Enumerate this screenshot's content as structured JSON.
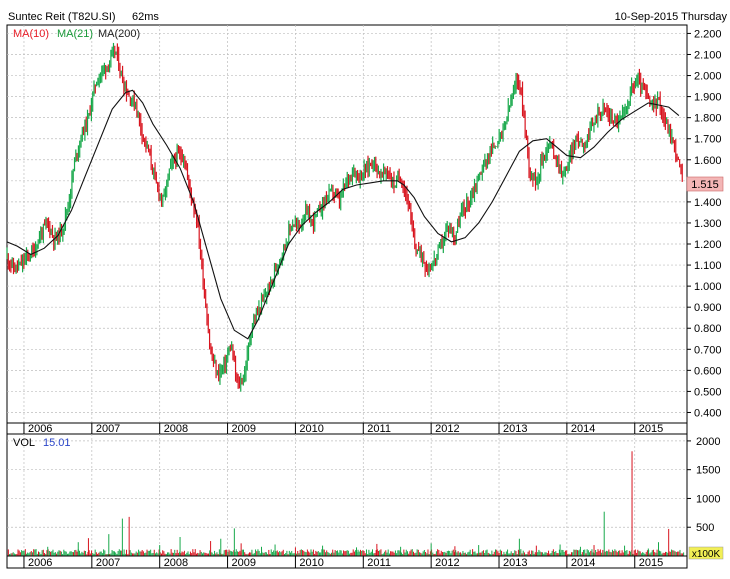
{
  "header": {
    "title": "Suntec Reit (T82U.SI)",
    "timing": "62ms",
    "date": "10-Sep-2015 Thursday"
  },
  "legend": [
    {
      "label": "MA(10)",
      "color": "#e8202a"
    },
    {
      "label": "MA(21)",
      "color": "#1a9a3a"
    },
    {
      "label": "MA(200)",
      "color": "#222222"
    }
  ],
  "colors": {
    "up": "#17a84a",
    "down": "#d8141e",
    "ma200": "#111111",
    "grid": "#bdbdbd",
    "last_price_bg": "#f3b6b6",
    "vol_value": "#2b46c8"
  },
  "chart_data": [
    {
      "type": "line",
      "title": "",
      "x_tick_labels": [
        "2006",
        "2007",
        "2008",
        "2009",
        "2010",
        "2011",
        "2012",
        "2013",
        "2014",
        "2015"
      ],
      "y_tick_labels": [
        "0.400",
        "0.500",
        "0.600",
        "0.700",
        "0.800",
        "0.900",
        "1.000",
        "1.100",
        "1.200",
        "1.300",
        "1.400",
        "1.500",
        "1.600",
        "1.700",
        "1.800",
        "1.900",
        "2.000",
        "2.100",
        "2.200"
      ],
      "ylim": [
        0.35,
        2.24
      ],
      "xlim": [
        2005.75,
        2015.77
      ],
      "grid": true,
      "last_price": "1.515",
      "series": [
        {
          "name": "MA(200)",
          "x": [
            2005.75,
            2005.9,
            2006.1,
            2006.3,
            2006.5,
            2006.7,
            2006.9,
            2007.1,
            2007.3,
            2007.5,
            2007.6,
            2007.75,
            2007.9,
            2008.1,
            2008.3,
            2008.5,
            2008.7,
            2008.9,
            2009.1,
            2009.3,
            2009.45,
            2009.6,
            2009.75,
            2009.9,
            2010.1,
            2010.3,
            2010.5,
            2010.7,
            2010.9,
            2011.1,
            2011.3,
            2011.5,
            2011.6,
            2011.75,
            2011.9,
            2012.1,
            2012.3,
            2012.5,
            2012.7,
            2012.9,
            2013.1,
            2013.3,
            2013.5,
            2013.7,
            2013.85,
            2014.0,
            2014.2,
            2014.4,
            2014.6,
            2014.8,
            2015.0,
            2015.2,
            2015.35,
            2015.5,
            2015.65
          ],
          "values": [
            1.21,
            1.19,
            1.15,
            1.18,
            1.24,
            1.36,
            1.52,
            1.68,
            1.84,
            1.92,
            1.93,
            1.87,
            1.77,
            1.67,
            1.56,
            1.4,
            1.17,
            0.94,
            0.79,
            0.75,
            0.84,
            0.96,
            1.08,
            1.2,
            1.29,
            1.35,
            1.4,
            1.46,
            1.48,
            1.49,
            1.5,
            1.5,
            1.48,
            1.42,
            1.33,
            1.25,
            1.21,
            1.23,
            1.3,
            1.4,
            1.52,
            1.64,
            1.69,
            1.7,
            1.66,
            1.62,
            1.61,
            1.66,
            1.73,
            1.79,
            1.83,
            1.87,
            1.86,
            1.85,
            1.81
          ]
        },
        {
          "name": "Price",
          "x": [
            2005.75,
            2005.85,
            2005.95,
            2006.05,
            2006.15,
            2006.25,
            2006.35,
            2006.45,
            2006.55,
            2006.65,
            2006.75,
            2006.85,
            2006.95,
            2007.05,
            2007.15,
            2007.25,
            2007.35,
            2007.45,
            2007.55,
            2007.65,
            2007.75,
            2007.85,
            2007.95,
            2008.05,
            2008.15,
            2008.25,
            2008.35,
            2008.45,
            2008.55,
            2008.65,
            2008.75,
            2008.85,
            2008.95,
            2009.05,
            2009.15,
            2009.25,
            2009.35,
            2009.45,
            2009.55,
            2009.65,
            2009.75,
            2009.85,
            2009.95,
            2010.05,
            2010.15,
            2010.25,
            2010.35,
            2010.45,
            2010.55,
            2010.65,
            2010.75,
            2010.85,
            2010.95,
            2011.05,
            2011.15,
            2011.25,
            2011.35,
            2011.45,
            2011.55,
            2011.65,
            2011.75,
            2011.85,
            2011.95,
            2012.05,
            2012.15,
            2012.25,
            2012.35,
            2012.45,
            2012.55,
            2012.65,
            2012.75,
            2012.85,
            2012.95,
            2013.05,
            2013.15,
            2013.25,
            2013.3,
            2013.35,
            2013.45,
            2013.55,
            2013.65,
            2013.75,
            2013.85,
            2013.95,
            2014.05,
            2014.15,
            2014.25,
            2014.35,
            2014.45,
            2014.55,
            2014.65,
            2014.75,
            2014.85,
            2014.95,
            2015.05,
            2015.15,
            2015.25,
            2015.35,
            2015.45,
            2015.55,
            2015.65,
            2015.7
          ],
          "values": [
            1.14,
            1.08,
            1.1,
            1.14,
            1.17,
            1.25,
            1.3,
            1.22,
            1.26,
            1.38,
            1.6,
            1.72,
            1.8,
            1.96,
            2.02,
            2.06,
            2.12,
            1.98,
            1.9,
            1.86,
            1.72,
            1.62,
            1.48,
            1.4,
            1.56,
            1.62,
            1.62,
            1.45,
            1.32,
            1.0,
            0.68,
            0.58,
            0.62,
            0.72,
            0.52,
            0.58,
            0.8,
            0.88,
            0.95,
            1.02,
            1.12,
            1.2,
            1.3,
            1.28,
            1.35,
            1.3,
            1.36,
            1.42,
            1.45,
            1.4,
            1.5,
            1.55,
            1.52,
            1.56,
            1.6,
            1.52,
            1.55,
            1.48,
            1.52,
            1.42,
            1.2,
            1.15,
            1.08,
            1.12,
            1.2,
            1.28,
            1.24,
            1.35,
            1.4,
            1.48,
            1.56,
            1.62,
            1.68,
            1.72,
            1.85,
            1.96,
            1.98,
            1.85,
            1.55,
            1.5,
            1.62,
            1.68,
            1.6,
            1.52,
            1.62,
            1.7,
            1.68,
            1.74,
            1.82,
            1.84,
            1.8,
            1.78,
            1.82,
            1.94,
            1.98,
            1.92,
            1.85,
            1.88,
            1.78,
            1.7,
            1.58,
            1.515
          ]
        }
      ]
    },
    {
      "type": "bar",
      "title": "",
      "label": "VOL",
      "value": "15.01",
      "unit_label": "x100K",
      "x_tick_labels": [
        "2006",
        "2007",
        "2008",
        "2009",
        "2010",
        "2011",
        "2012",
        "2013",
        "2014",
        "2015"
      ],
      "y_tick_labels": [
        "500",
        "1000",
        "1500",
        "2000"
      ],
      "ylim": [
        0,
        2120
      ],
      "x": [
        2006.02,
        2006.35,
        2006.8,
        2006.95,
        2007.25,
        2007.45,
        2007.55,
        2008.0,
        2008.3,
        2008.75,
        2008.9,
        2009.1,
        2009.2,
        2009.5,
        2009.7,
        2010.0,
        2010.4,
        2010.9,
        2011.2,
        2011.55,
        2012.0,
        2012.35,
        2012.7,
        2013.3,
        2013.55,
        2013.9,
        2014.2,
        2014.4,
        2014.55,
        2014.85,
        2014.96,
        2015.2,
        2015.35,
        2015.5
      ],
      "values": [
        120,
        160,
        240,
        310,
        380,
        650,
        680,
        190,
        330,
        260,
        300,
        480,
        220,
        160,
        200,
        150,
        180,
        150,
        210,
        160,
        220,
        170,
        190,
        300,
        180,
        200,
        160,
        190,
        770,
        180,
        1820,
        130,
        240,
        470
      ]
    }
  ]
}
